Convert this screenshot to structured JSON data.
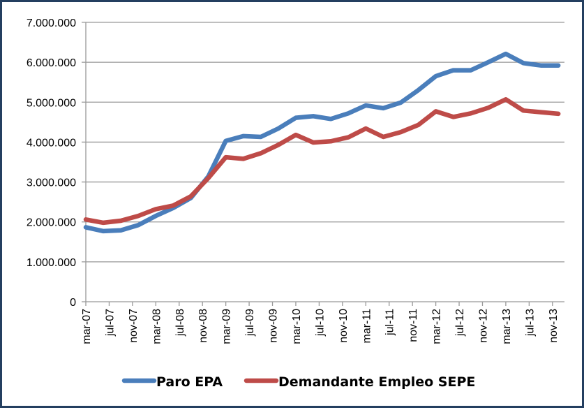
{
  "chart_data": {
    "type": "line",
    "title": "",
    "xlabel": "",
    "ylabel": "",
    "x_tick_labels": [
      "mar-07",
      "jul-07",
      "nov-07",
      "mar-08",
      "jul-08",
      "nov-08",
      "mar-09",
      "jul-09",
      "nov-09",
      "mar-10",
      "jul-10",
      "nov-10",
      "mar-11",
      "jul-11",
      "nov-11",
      "mar-12",
      "jul-12",
      "nov-12",
      "mar-13",
      "jul-13",
      "nov-13"
    ],
    "y_tick_labels": [
      "0",
      "1.000.000",
      "2.000.000",
      "3.000.000",
      "4.000.000",
      "5.000.000",
      "6.000.000",
      "7.000.000"
    ],
    "ylim": [
      0,
      7000000
    ],
    "grid": "horizontal",
    "legend_position": "bottom",
    "x": [
      "2007-03",
      "2007-06",
      "2007-09",
      "2007-12",
      "2008-03",
      "2008-06",
      "2008-09",
      "2008-12",
      "2009-03",
      "2009-06",
      "2009-09",
      "2009-12",
      "2010-03",
      "2010-06",
      "2010-09",
      "2010-12",
      "2011-03",
      "2011-06",
      "2011-09",
      "2011-12",
      "2012-03",
      "2012-06",
      "2012-09",
      "2012-12",
      "2013-03",
      "2013-06",
      "2013-09",
      "2013-12"
    ],
    "series": [
      {
        "name": "Paro EPA",
        "color": "#4a7ebb",
        "values": [
          1865000,
          1770000,
          1790000,
          1920000,
          2150000,
          2350000,
          2600000,
          3140000,
          4030000,
          4150000,
          4130000,
          4340000,
          4610000,
          4650000,
          4580000,
          4720000,
          4920000,
          4850000,
          4990000,
          5300000,
          5650000,
          5800000,
          5800000,
          6000000,
          6210000,
          5980000,
          5920000,
          5920000
        ]
      },
      {
        "name": "Demandante Empleo SEPE",
        "color": "#be4b48",
        "values": [
          2060000,
          1980000,
          2030000,
          2150000,
          2320000,
          2410000,
          2640000,
          3100000,
          3620000,
          3580000,
          3720000,
          3930000,
          4180000,
          3990000,
          4020000,
          4120000,
          4340000,
          4130000,
          4250000,
          4430000,
          4770000,
          4630000,
          4720000,
          4860000,
          5070000,
          4790000,
          4750000,
          4710000
        ]
      }
    ]
  }
}
